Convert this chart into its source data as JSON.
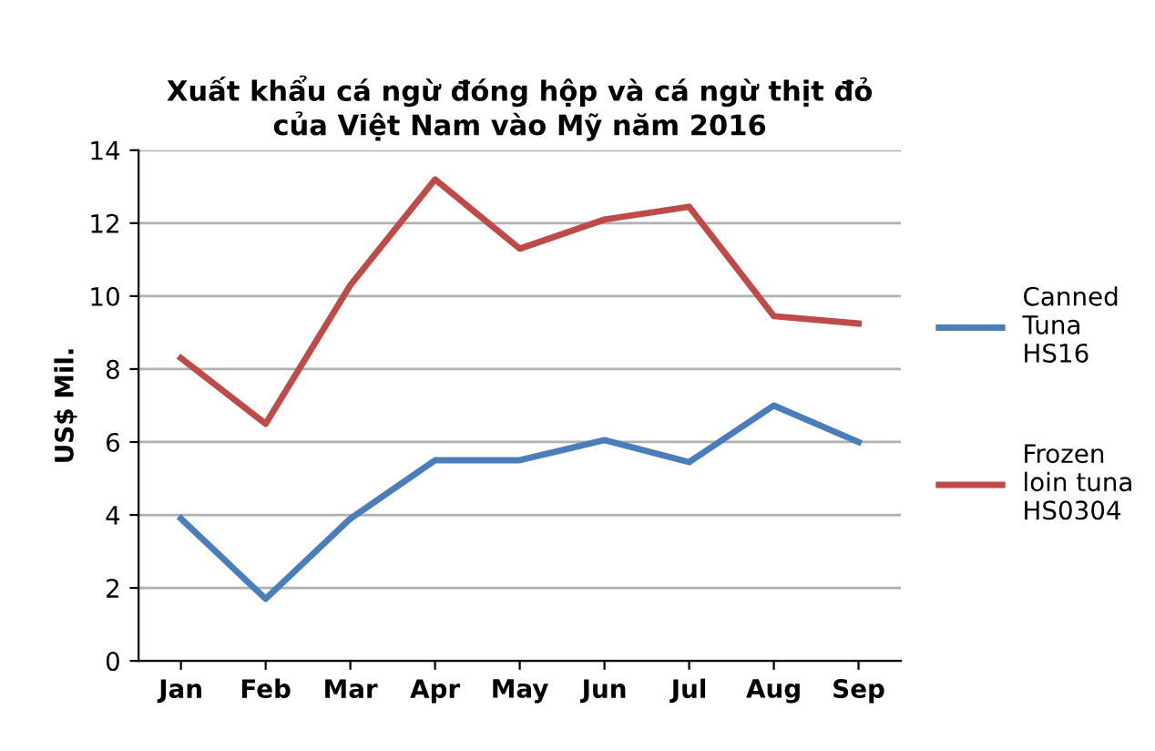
{
  "chart_data": {
    "type": "line",
    "title": "Xuất khẩu cá ngừ đóng hộp và cá ngừ thịt đỏ\ncủa Việt Nam vào Mỹ năm 2016",
    "ylabel": "US$ Mil.",
    "categories": [
      "Jan",
      "Feb",
      "Mar",
      "Apr",
      "May",
      "Jun",
      "Jul",
      "Aug",
      "Sep"
    ],
    "series": [
      {
        "name": "Canned\nTuna\nHS16",
        "color": "#4a7ebb",
        "values": [
          3.9,
          1.7,
          3.9,
          5.5,
          5.5,
          6.05,
          5.45,
          7.0,
          6.0
        ]
      },
      {
        "name": "Frozen\nloin tuna\nHS0304",
        "color": "#be4b48",
        "values": [
          8.3,
          6.5,
          10.3,
          13.2,
          11.3,
          12.1,
          12.45,
          9.45,
          9.25
        ]
      }
    ],
    "ylim": [
      0,
      14
    ],
    "yticks": [
      0,
      2,
      4,
      6,
      8,
      10,
      12,
      14
    ],
    "grid": "y",
    "legend": "right",
    "marker": "none",
    "line_style": "solid"
  }
}
